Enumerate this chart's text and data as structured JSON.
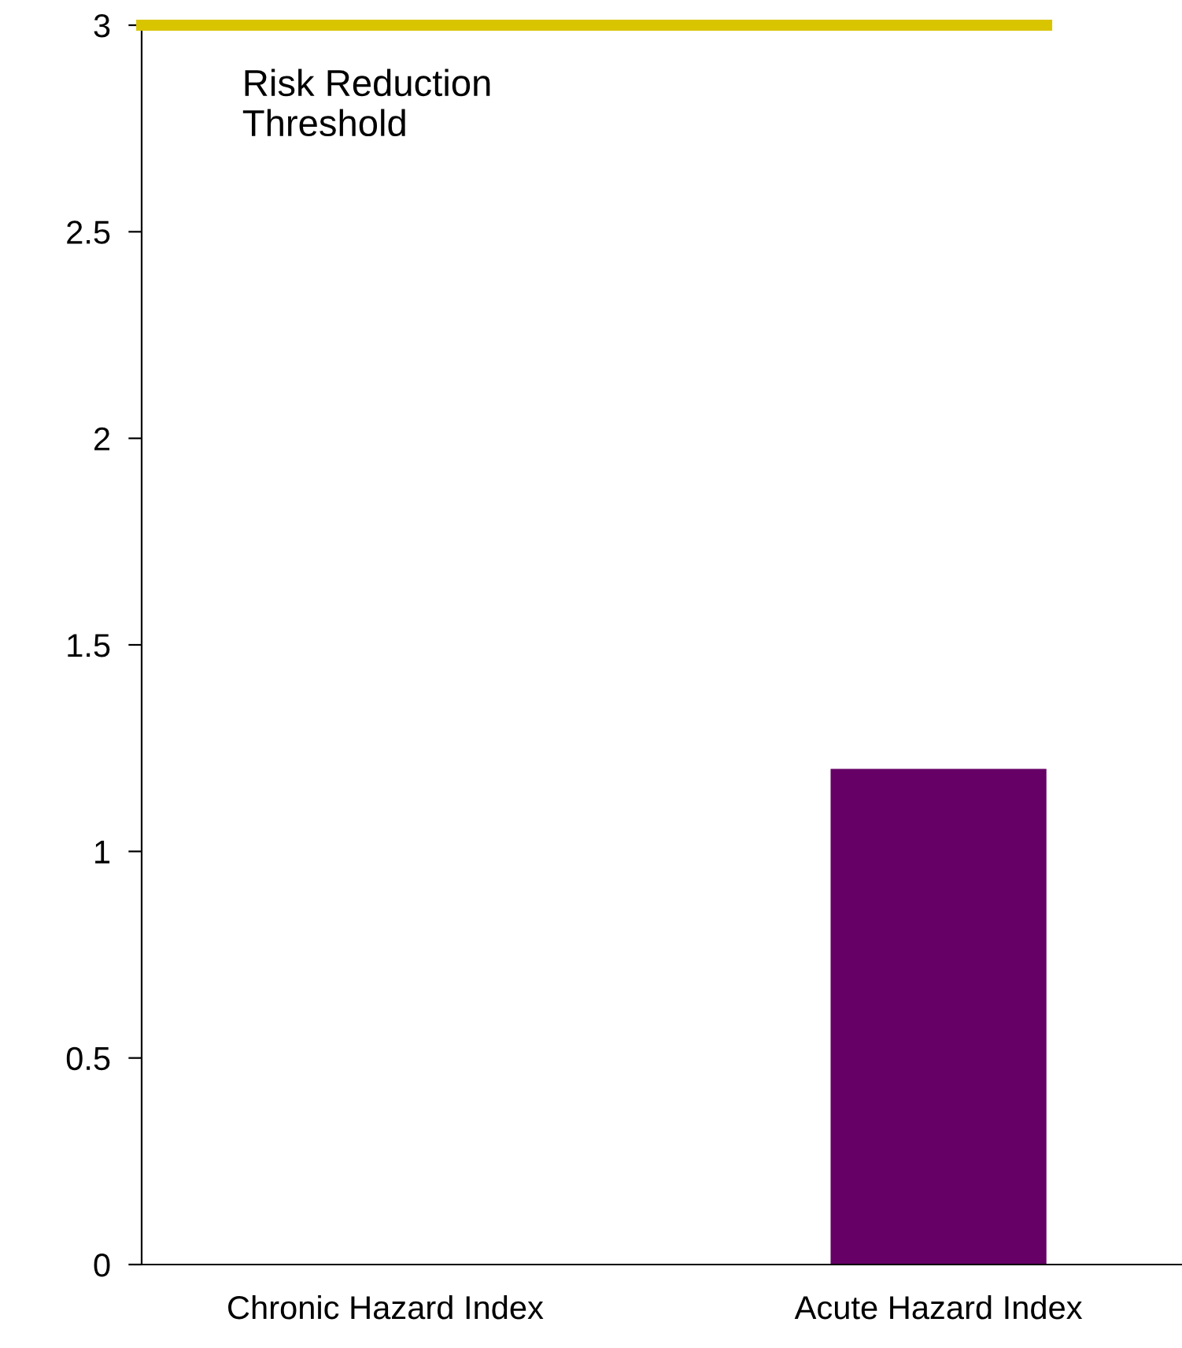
{
  "chart_data": {
    "type": "bar",
    "categories": [
      "Chronic Hazard Index",
      "Acute Hazard Index"
    ],
    "values": [
      0,
      1.2
    ],
    "color": "#660066",
    "ylim": [
      0,
      3
    ],
    "yticks": [
      0,
      0.5,
      1,
      1.5,
      2,
      2.5,
      3
    ],
    "grid": false,
    "legend": false,
    "ref_lines": [
      {
        "axis": "y",
        "value": 3,
        "label": "Risk Reduction\nThreshold",
        "color": "#d9c400",
        "line_style": "solid"
      }
    ]
  }
}
